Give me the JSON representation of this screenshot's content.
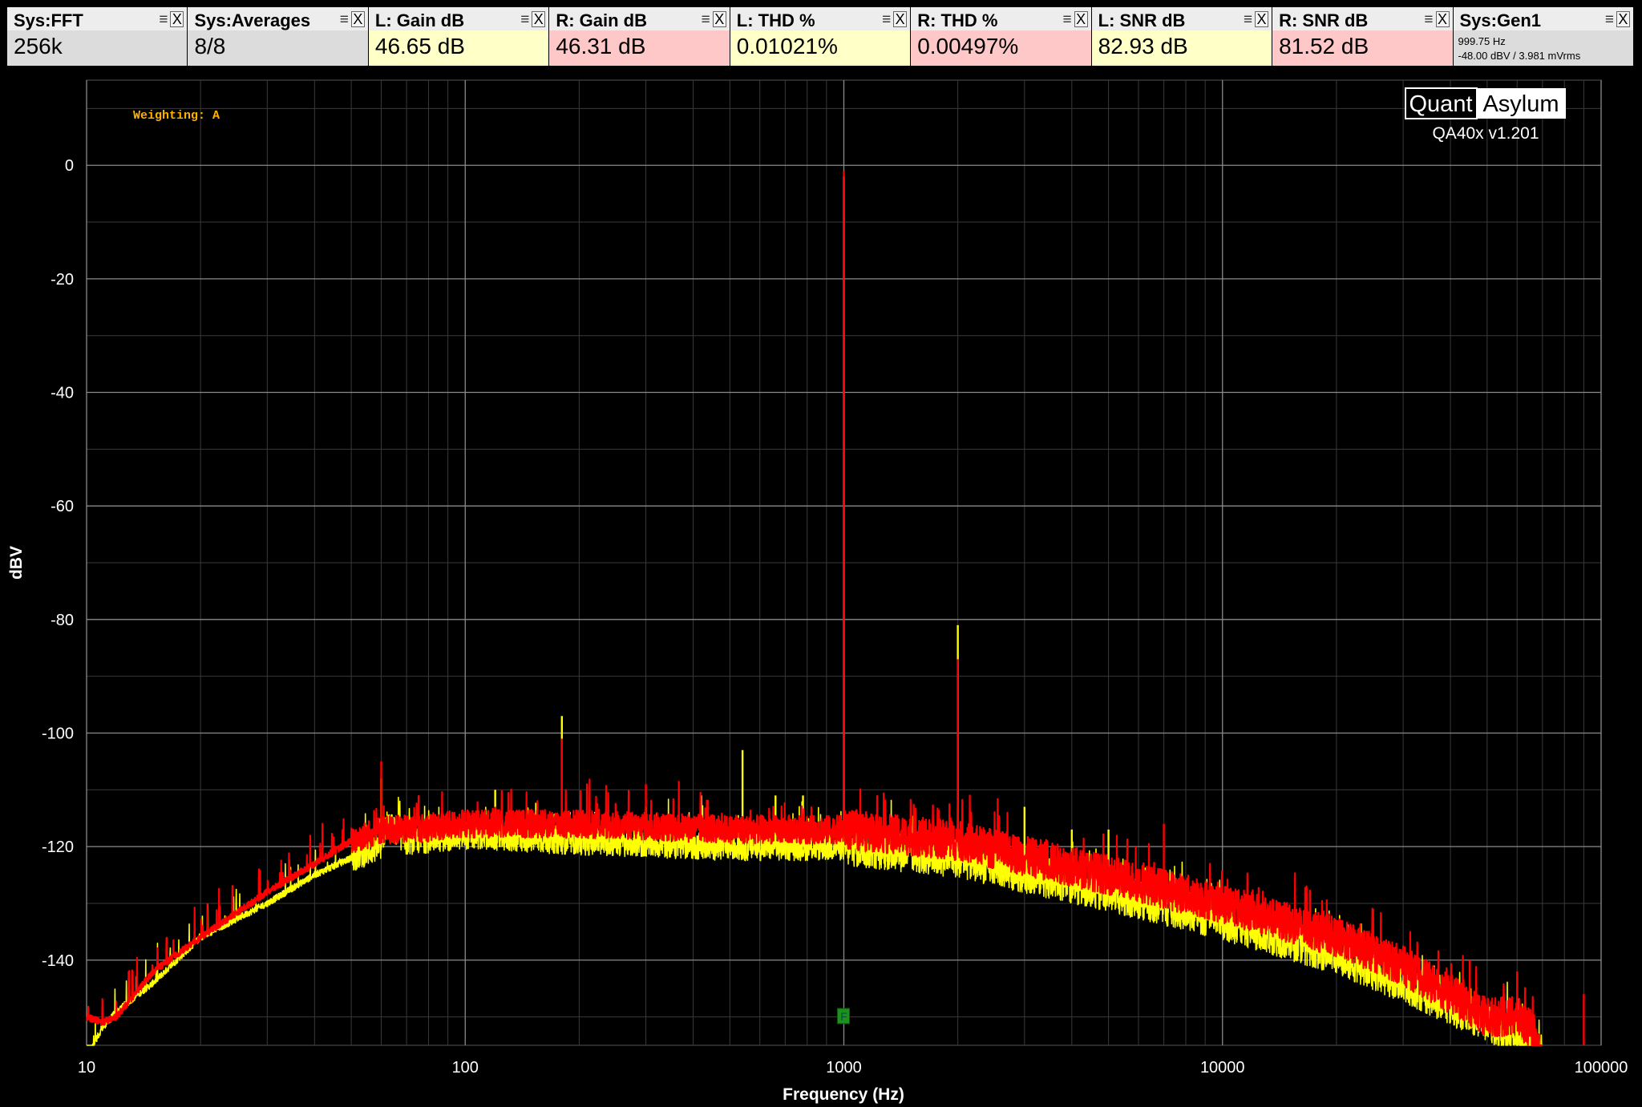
{
  "tiles": [
    {
      "title": "Sys:FFT",
      "value": "256k",
      "bg": "#dcdcdc"
    },
    {
      "title": "Sys:Averages",
      "value": "8/8",
      "bg": "#dcdcdc"
    },
    {
      "title": "L: Gain dB",
      "value": "46.65 dB",
      "bg": "#ffffc8"
    },
    {
      "title": "R: Gain dB",
      "value": "46.31 dB",
      "bg": "#ffc8c8"
    },
    {
      "title": "L: THD %",
      "value": "0.01021%",
      "bg": "#ffffc8"
    },
    {
      "title": "R: THD %",
      "value": "0.00497%",
      "bg": "#ffc8c8"
    },
    {
      "title": "L: SNR dB",
      "value": "82.93 dB",
      "bg": "#ffffc8"
    },
    {
      "title": "R: SNR dB",
      "value": "81.52 dB",
      "bg": "#ffc8c8"
    },
    {
      "title": "Sys:Gen1",
      "sub1": "999.75 Hz",
      "sub2": "-48.00 dBV  / 3.981 mVrms",
      "bg": "#dcdcdc"
    }
  ],
  "tile_menu_glyph": "≡",
  "tile_close_glyph": "X",
  "brand": {
    "left": "Quant",
    "right": "Asylum",
    "version": "QA40x v1.201"
  },
  "weighting_label": "Weighting: A",
  "marker_label": "F",
  "chart_data": {
    "type": "line",
    "xlabel": "Frequency (Hz)",
    "ylabel": "dBV",
    "xscale": "log",
    "xlim": [
      10,
      100000
    ],
    "ylim": [
      -155,
      15
    ],
    "x_ticks": [
      10,
      100,
      1000,
      10000,
      100000
    ],
    "x_tick_labels": [
      "10",
      "100",
      "1000",
      "10000",
      "100000"
    ],
    "y_ticks": [
      0,
      -20,
      -40,
      -60,
      -80,
      -100,
      -120,
      -140
    ],
    "y_tick_labels": [
      "0",
      "-20",
      "-40",
      "-60",
      "-80",
      "-100",
      "-120",
      "-140"
    ],
    "grid": true,
    "background": "#000000",
    "fundamental_marker_hz": 1000,
    "series": [
      {
        "color": "#ffff00",
        "noise_floor": {
          "x": [
            10,
            11,
            12,
            15,
            20,
            30,
            40,
            50,
            60,
            62,
            70,
            100,
            200,
            500,
            1000,
            2000,
            5000,
            10000,
            20000,
            30000,
            40000,
            50000,
            60000,
            70000
          ],
          "y": [
            -157,
            -152,
            -149,
            -144,
            -136,
            -130,
            -125,
            -122,
            -120,
            -116,
            -119,
            -118,
            -119,
            -120,
            -120,
            -122,
            -128,
            -133,
            -139,
            -144,
            -148,
            -151,
            -154,
            -157
          ]
        },
        "peaks": {
          "x": [
            60,
            120,
            180,
            300,
            420,
            540,
            660,
            780,
            1000,
            2000,
            3000,
            4000,
            5000
          ],
          "y": [
            -108,
            -110,
            -97,
            -113,
            -111,
            -103,
            -111,
            -111,
            -2,
            -81,
            -113,
            -117,
            -117
          ]
        }
      },
      {
        "color": "#ff0000",
        "noise_floor": {
          "x": [
            10,
            11,
            12,
            15,
            20,
            30,
            40,
            50,
            60,
            62,
            70,
            100,
            200,
            500,
            1000,
            2000,
            5000,
            10000,
            20000,
            30000,
            40000,
            50000,
            60000,
            65000,
            70000
          ],
          "y": [
            -150,
            -151,
            -150,
            -142,
            -136,
            -128,
            -123,
            -119,
            -117,
            -117,
            -117,
            -116,
            -116,
            -117,
            -117,
            -119,
            -125,
            -130,
            -136,
            -141,
            -146,
            -150,
            -150,
            -152,
            -158
          ]
        },
        "peaks": {
          "x": [
            60,
            120,
            180,
            300,
            1000,
            2000,
            7000,
            25000,
            45000,
            60000,
            90000
          ],
          "y": [
            -105,
            -113,
            -101,
            -109,
            -1,
            -87,
            -116,
            -131,
            -140,
            -142,
            -146
          ]
        }
      }
    ]
  }
}
